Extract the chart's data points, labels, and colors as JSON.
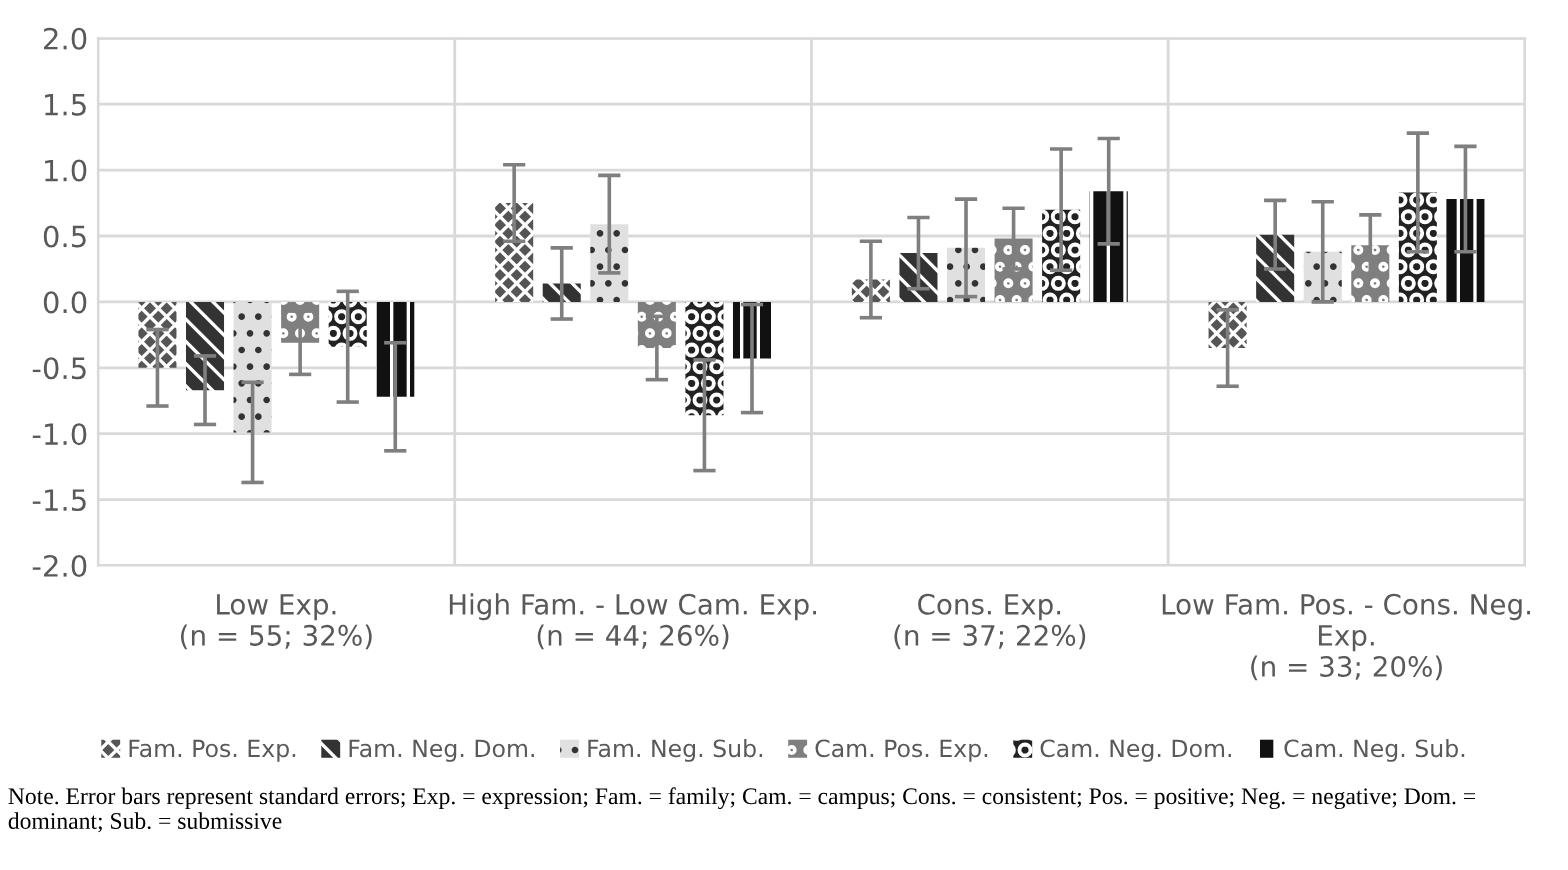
{
  "chart_data": {
    "type": "bar",
    "categories": [
      "Low Exp.\n(n = 55; 32%)",
      "High Fam. - Low Cam. Exp.\n(n = 44; 26%)",
      "Cons. Exp.\n(n = 37; 22%)",
      "Low Fam. Pos. - Cons. Neg.\nExp.\n(n = 33; 20%)"
    ],
    "series": [
      {
        "name": "Fam. Pos. Exp.",
        "color": "#555555",
        "values": [
          -0.5,
          0.75,
          0.17,
          -0.35
        ],
        "errors": [
          0.29,
          0.29,
          0.29,
          0.29
        ]
      },
      {
        "name": "Fam. Neg. Dom.",
        "color": "#333333",
        "values": [
          -0.67,
          0.14,
          0.37,
          0.51
        ],
        "errors": [
          0.26,
          0.27,
          0.27,
          0.26
        ]
      },
      {
        "name": "Fam. Neg. Sub.",
        "color": "#e0e0e0",
        "values": [
          -0.99,
          0.59,
          0.41,
          0.38
        ],
        "errors": [
          0.38,
          0.37,
          0.37,
          0.38
        ]
      },
      {
        "name": "Cam. Pos. Exp.",
        "color": "#7f7f7f",
        "values": [
          -0.31,
          -0.35,
          0.48,
          0.43
        ],
        "errors": [
          0.24,
          0.24,
          0.23,
          0.23
        ]
      },
      {
        "name": "Cam. Neg. Dom.",
        "color": "#222222",
        "values": [
          -0.34,
          -0.86,
          0.7,
          0.83
        ],
        "errors": [
          0.42,
          0.42,
          0.46,
          0.45
        ]
      },
      {
        "name": "Cam. Neg. Sub.",
        "color": "#111111",
        "values": [
          -0.72,
          -0.43,
          0.84,
          0.78
        ],
        "errors": [
          0.41,
          0.41,
          0.4,
          0.4
        ]
      }
    ],
    "ylim": [
      -2.0,
      2.0
    ],
    "yticks": [
      {
        "value": -2.0,
        "label": "-2.0"
      },
      {
        "value": -1.5,
        "label": "-1.5"
      },
      {
        "value": -1.0,
        "label": "-1.0"
      },
      {
        "value": -0.5,
        "label": "-0.5"
      },
      {
        "value": 0.0,
        "label": "0.0"
      },
      {
        "value": 0.5,
        "label": "0.5"
      },
      {
        "value": 1.0,
        "label": "1.0"
      },
      {
        "value": 1.5,
        "label": "1.5"
      },
      {
        "value": 2.0,
        "label": "2.0"
      }
    ],
    "grid": true,
    "legend": "bottom",
    "annotations": [
      "Note. Error bars represent standard errors; Exp. = expression; Fam. = family; Cam. = campus; Cons. = consistent; Pos. = positive; Neg. = negative; Dom. = dominant; Sub. = submissive"
    ]
  }
}
